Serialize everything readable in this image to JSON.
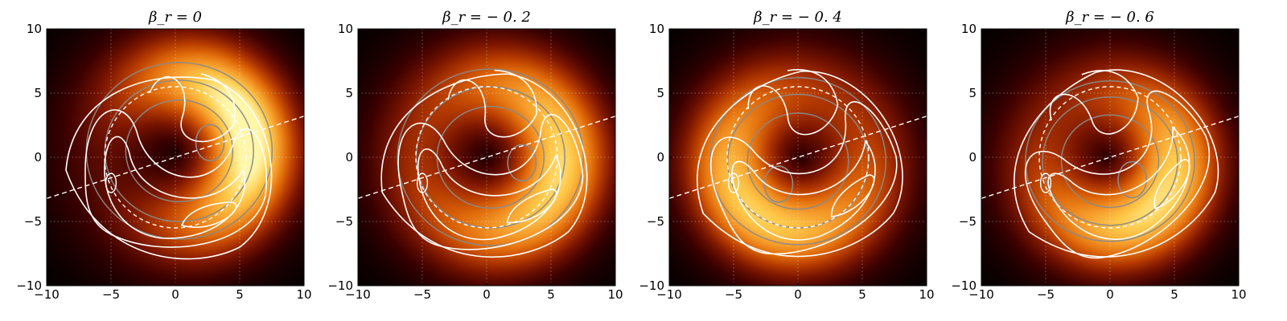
{
  "colors": {
    "intensity_map": [
      "#000000",
      "#3a0000",
      "#7a1500",
      "#b53a00",
      "#e06a0a",
      "#f59a2a",
      "#ffc94a",
      "#fff6a8"
    ],
    "ring_contour": "#8a8a8a",
    "polarization_contour": "#ffffff",
    "reference_line": "#ffffff",
    "grid": "#ffffff"
  },
  "chart_data": [
    {
      "type": "heatmap",
      "title": "β_r = 0",
      "xlim": [
        -10,
        10
      ],
      "ylim": [
        -10,
        10
      ],
      "xticks": [
        "−10",
        "−5",
        "0",
        "5",
        "10"
      ],
      "yticks": [
        "10",
        "5",
        "0",
        "−5",
        "−10"
      ],
      "grid": true,
      "ring": {
        "center": [
          0.3,
          0.5
        ],
        "radius": 5.5,
        "brightness_peak_angle_deg": 15,
        "peak_asymmetry": 0.9
      },
      "reference_line": {
        "slope": 0.32,
        "intercept": 0
      },
      "dashed_circle_radius": 5.5,
      "flow_spiral": {
        "rotation_deg": 0
      }
    },
    {
      "type": "heatmap",
      "title": "β_r = − 0. 2",
      "xlim": [
        -10,
        10
      ],
      "ylim": [
        -10,
        10
      ],
      "xticks": [
        "−10",
        "−5",
        "0",
        "5",
        "10"
      ],
      "yticks": [
        "10",
        "5",
        "0",
        "−5",
        "−10"
      ],
      "grid": true,
      "ring": {
        "center": [
          0.3,
          0.0
        ],
        "radius": 5.5,
        "brightness_peak_angle_deg": -10,
        "peak_asymmetry": 0.55
      },
      "reference_line": {
        "slope": 0.32,
        "intercept": 0
      },
      "dashed_circle_radius": 5.5,
      "flow_spiral": {
        "rotation_deg": -12
      }
    },
    {
      "type": "heatmap",
      "title": "β_r = − 0. 4",
      "xlim": [
        -10,
        10
      ],
      "ylim": [
        -10,
        10
      ],
      "xticks": [
        "−10",
        "−5",
        "0",
        "5",
        "10"
      ],
      "yticks": [
        "10",
        "5",
        "0",
        "−5",
        "−10"
      ],
      "grid": true,
      "ring": {
        "center": [
          0.0,
          -0.3
        ],
        "radius": 5.2,
        "brightness_peak_angle_deg": -130,
        "peak_asymmetry": 0.5
      },
      "reference_line": {
        "slope": 0.32,
        "intercept": 0
      },
      "dashed_circle_radius": 5.5,
      "flow_spiral": {
        "rotation_deg": -24
      }
    },
    {
      "type": "heatmap",
      "title": "β_r = − 0. 6",
      "xlim": [
        -10,
        10
      ],
      "ylim": [
        -10,
        10
      ],
      "xticks": [
        "−10",
        "−5",
        "0",
        "5",
        "10"
      ],
      "yticks": [
        "10",
        "5",
        "0",
        "−5",
        "−10"
      ],
      "grid": true,
      "ring": {
        "center": [
          0.0,
          -0.3
        ],
        "radius": 5.0,
        "brightness_peak_angle_deg": -40,
        "peak_asymmetry": 0.6
      },
      "reference_line": {
        "slope": 0.32,
        "intercept": 0
      },
      "dashed_circle_radius": 5.5,
      "flow_spiral": {
        "rotation_deg": -36
      }
    }
  ]
}
